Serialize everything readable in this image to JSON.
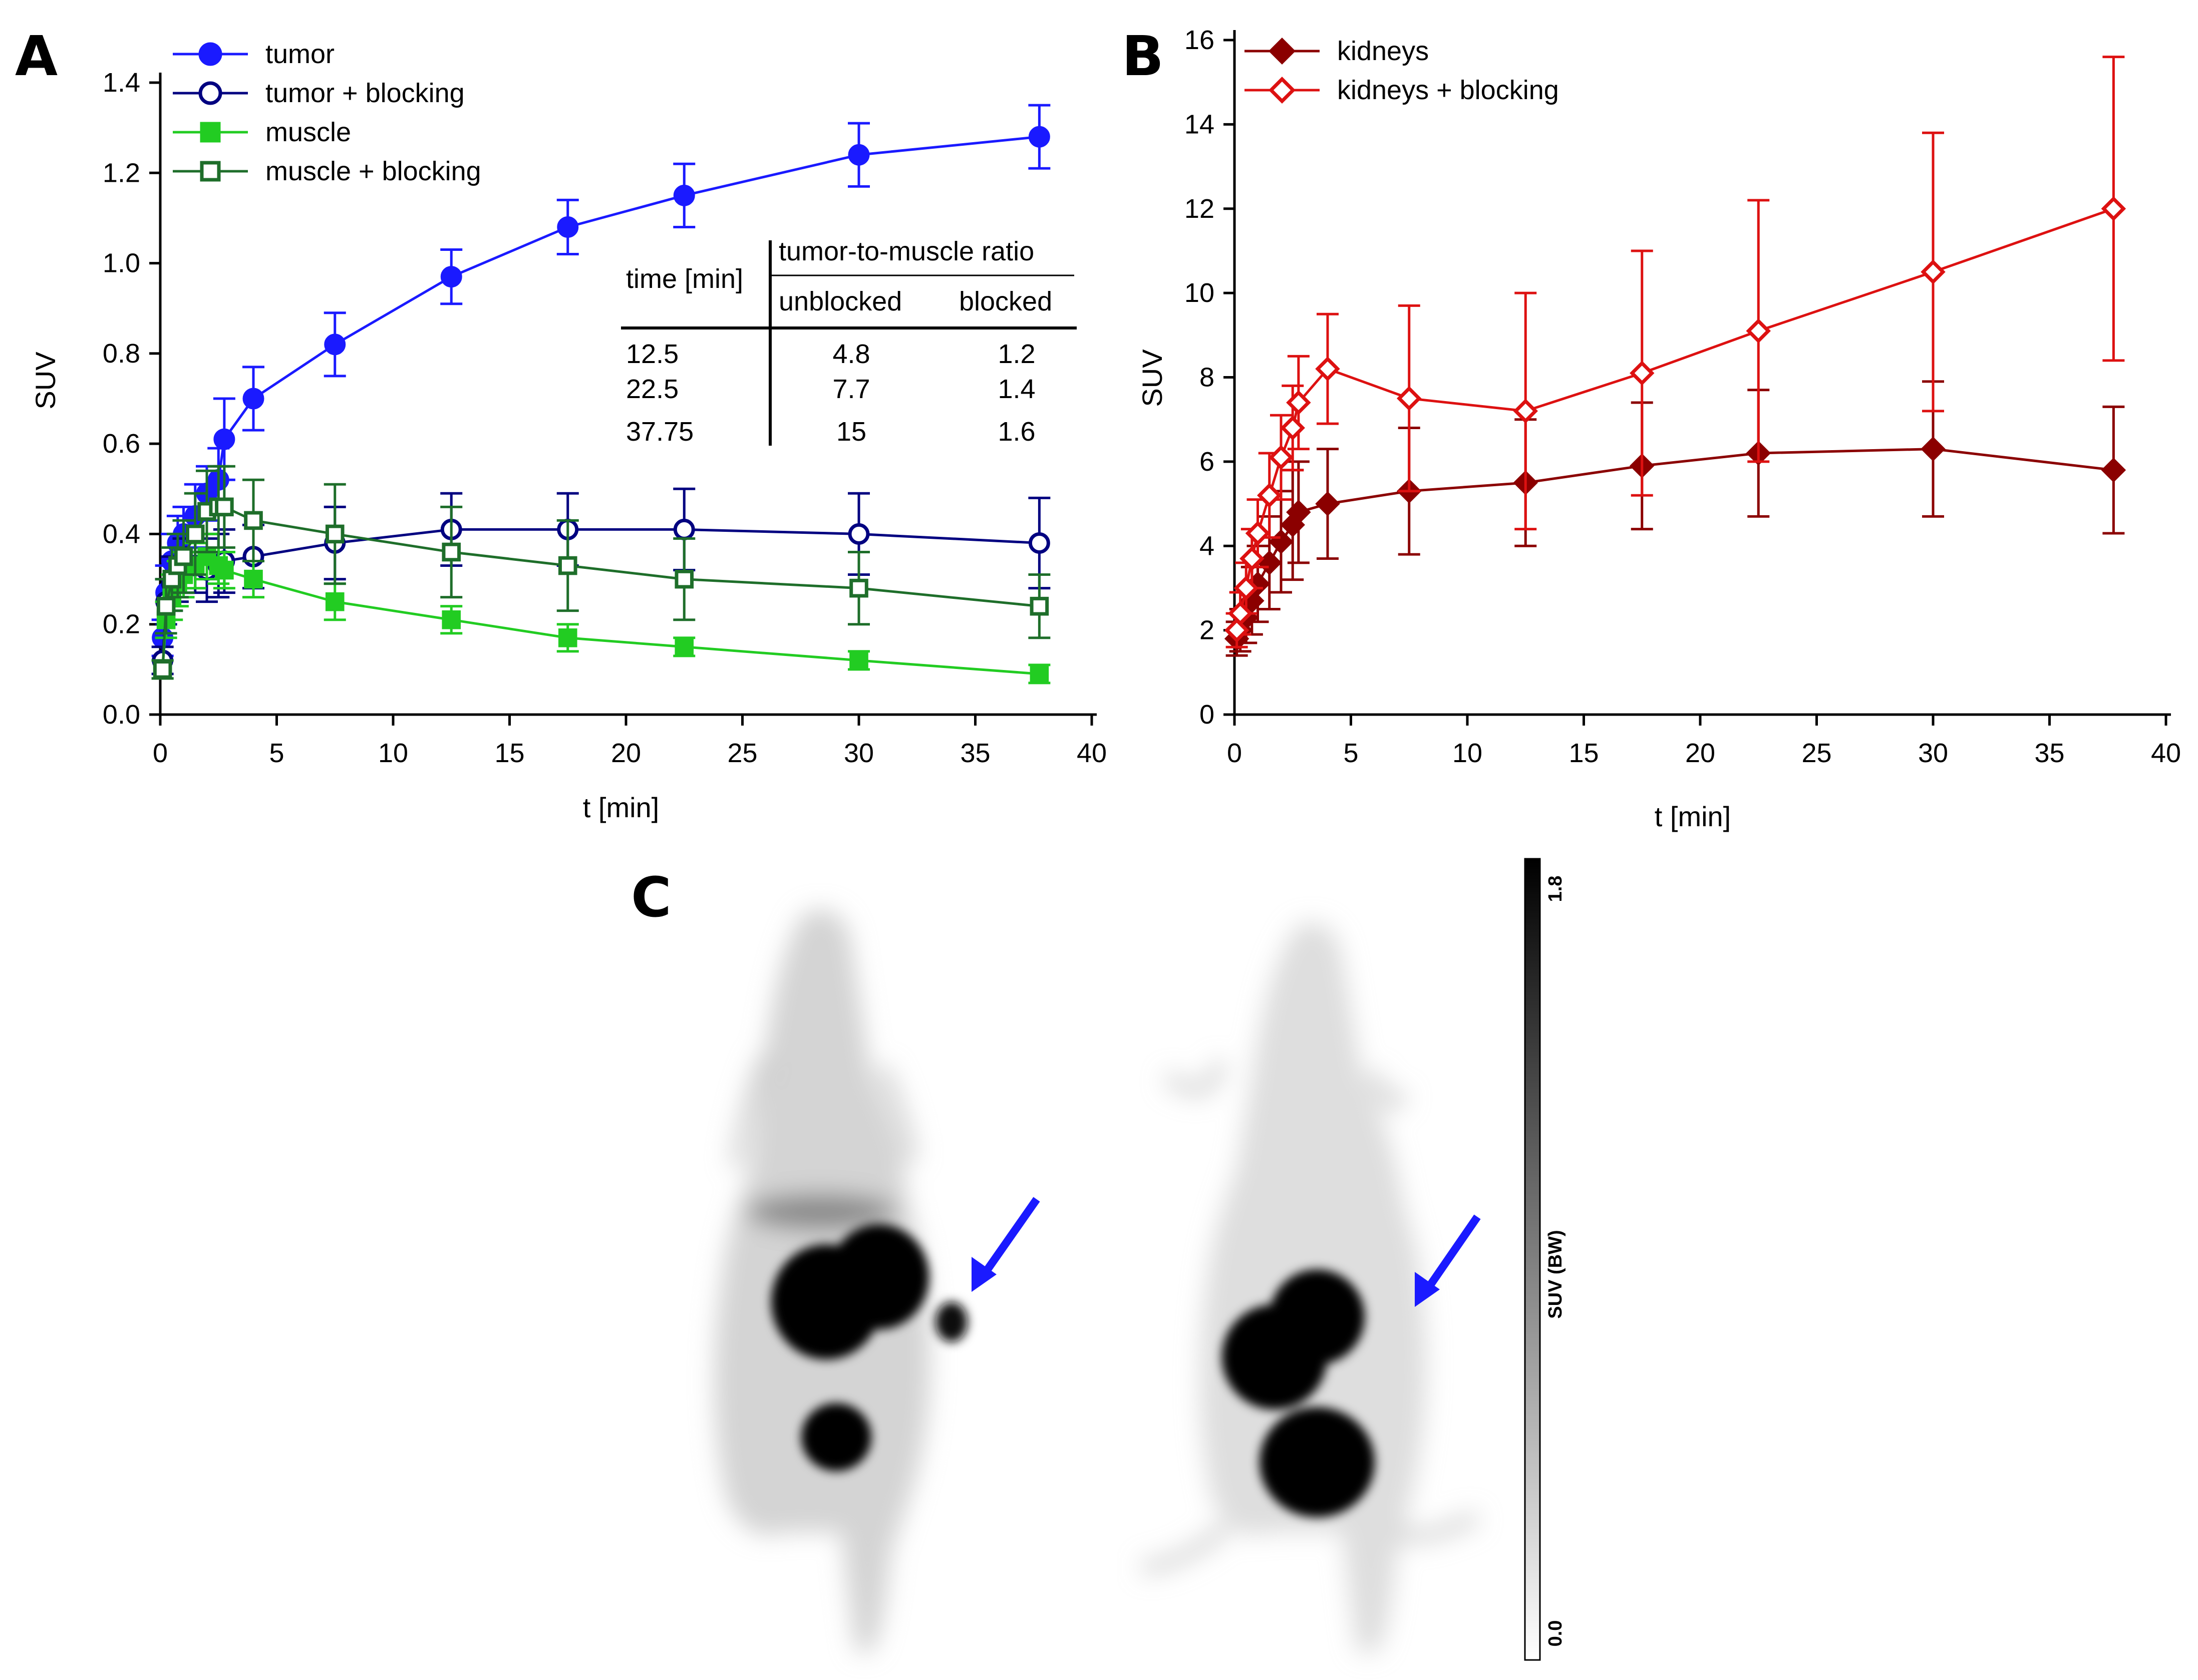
{
  "panels": {
    "a_letter": "A",
    "b_letter": "B",
    "c_letter": "C"
  },
  "chart_data": [
    {
      "type": "line",
      "panel": "A",
      "xlabel": "t [min]",
      "ylabel": "SUV",
      "xlim": [
        0,
        40
      ],
      "ylim": [
        0,
        1.4
      ],
      "xticks": [
        "0",
        "5",
        "10",
        "15",
        "20",
        "25",
        "30",
        "35",
        "40"
      ],
      "yticks": [
        "0.0",
        "0.2",
        "0.4",
        "0.6",
        "0.8",
        "1.0",
        "1.2",
        "1.4"
      ],
      "grid": false,
      "legend_position": "top-left",
      "series": [
        {
          "name": "tumor",
          "color": "#1a1aff",
          "marker": "circle-filled",
          "x": [
            0.1,
            0.25,
            0.5,
            0.75,
            1.0,
            1.5,
            2.0,
            2.5,
            2.75,
            4.0,
            7.5,
            12.5,
            17.5,
            22.5,
            30.0,
            37.75
          ],
          "y": [
            0.17,
            0.27,
            0.34,
            0.38,
            0.4,
            0.44,
            0.49,
            0.52,
            0.61,
            0.7,
            0.82,
            0.97,
            1.08,
            1.15,
            1.24,
            1.28
          ],
          "err": [
            0.04,
            0.06,
            0.06,
            0.06,
            0.06,
            0.07,
            0.06,
            0.07,
            0.09,
            0.07,
            0.07,
            0.06,
            0.06,
            0.07,
            0.07,
            0.07
          ]
        },
        {
          "name": "tumor + blocking",
          "color": "#000080",
          "marker": "circle-open",
          "x": [
            0.1,
            0.25,
            0.5,
            0.75,
            1.0,
            1.5,
            2.0,
            2.5,
            2.75,
            4.0,
            7.5,
            12.5,
            17.5,
            22.5,
            30.0,
            37.75
          ],
          "y": [
            0.12,
            0.25,
            0.29,
            0.31,
            0.33,
            0.33,
            0.32,
            0.33,
            0.34,
            0.35,
            0.38,
            0.41,
            0.41,
            0.41,
            0.4,
            0.38
          ],
          "err": [
            0.03,
            0.05,
            0.06,
            0.06,
            0.06,
            0.06,
            0.07,
            0.07,
            0.07,
            0.07,
            0.08,
            0.08,
            0.08,
            0.09,
            0.09,
            0.1
          ]
        },
        {
          "name": "muscle",
          "color": "#22cc22",
          "marker": "square-filled",
          "x": [
            0.1,
            0.25,
            0.5,
            0.75,
            1.0,
            1.5,
            2.0,
            2.5,
            2.75,
            4.0,
            7.5,
            12.5,
            17.5,
            22.5,
            30.0,
            37.75
          ],
          "y": [
            0.1,
            0.21,
            0.26,
            0.29,
            0.31,
            0.33,
            0.35,
            0.33,
            0.32,
            0.3,
            0.25,
            0.21,
            0.17,
            0.15,
            0.12,
            0.09
          ],
          "err": [
            0.02,
            0.04,
            0.05,
            0.05,
            0.05,
            0.05,
            0.05,
            0.04,
            0.04,
            0.04,
            0.04,
            0.03,
            0.03,
            0.02,
            0.02,
            0.02
          ]
        },
        {
          "name": "muscle + blocking",
          "color": "#1e6e2a",
          "marker": "square-open",
          "x": [
            0.1,
            0.25,
            0.5,
            0.75,
            1.0,
            1.5,
            2.0,
            2.5,
            2.75,
            4.0,
            7.5,
            12.5,
            17.5,
            22.5,
            30.0,
            37.75
          ],
          "y": [
            0.1,
            0.24,
            0.3,
            0.33,
            0.35,
            0.4,
            0.45,
            0.46,
            0.46,
            0.43,
            0.4,
            0.36,
            0.33,
            0.3,
            0.28,
            0.24
          ],
          "err": [
            0.02,
            0.06,
            0.07,
            0.07,
            0.08,
            0.09,
            0.09,
            0.09,
            0.09,
            0.09,
            0.11,
            0.1,
            0.1,
            0.09,
            0.08,
            0.07
          ]
        }
      ],
      "table": {
        "col_time": "time [min]",
        "col_group": "tumor-to-muscle ratio",
        "col_unblocked": "unblocked",
        "col_blocked": "blocked",
        "rows": [
          [
            "12.5",
            "4.8",
            "1.2"
          ],
          [
            "22.5",
            "7.7",
            "1.4"
          ],
          [
            "37.75",
            "15",
            "1.6"
          ]
        ]
      }
    },
    {
      "type": "line",
      "panel": "B",
      "xlabel": "t [min]",
      "ylabel": "SUV",
      "xlim": [
        0,
        40
      ],
      "ylim": [
        0,
        16
      ],
      "xticks": [
        "0",
        "5",
        "10",
        "15",
        "20",
        "25",
        "30",
        "35",
        "40"
      ],
      "yticks": [
        "0",
        "2",
        "4",
        "6",
        "8",
        "10",
        "12",
        "14",
        "16"
      ],
      "grid": false,
      "legend_position": "top-left",
      "series": [
        {
          "name": "kidneys",
          "color": "#8b0000",
          "marker": "diamond-filled",
          "x": [
            0.1,
            0.25,
            0.5,
            0.75,
            1.0,
            1.5,
            2.0,
            2.5,
            2.75,
            4.0,
            7.5,
            12.5,
            17.5,
            22.5,
            30.0,
            37.75
          ],
          "y": [
            1.8,
            2.0,
            2.3,
            2.7,
            3.1,
            3.6,
            4.1,
            4.5,
            4.8,
            5.0,
            5.3,
            5.5,
            5.9,
            6.2,
            6.3,
            5.8
          ],
          "err": [
            0.4,
            0.5,
            0.6,
            0.8,
            0.9,
            1.1,
            1.2,
            1.3,
            1.2,
            1.3,
            1.5,
            1.5,
            1.5,
            1.5,
            1.6,
            1.5
          ]
        },
        {
          "name": "kidneys + blocking",
          "color": "#dd1111",
          "marker": "diamond-open",
          "x": [
            0.1,
            0.25,
            0.5,
            0.75,
            1.0,
            1.5,
            2.0,
            2.5,
            2.75,
            4.0,
            7.5,
            12.5,
            17.5,
            22.5,
            30.0,
            37.75
          ],
          "y": [
            2.0,
            2.4,
            3.0,
            3.7,
            4.3,
            5.2,
            6.1,
            6.8,
            7.4,
            8.2,
            7.5,
            7.2,
            8.1,
            9.1,
            10.5,
            12.0
          ],
          "err": [
            0.4,
            0.5,
            0.6,
            0.7,
            0.8,
            1.0,
            1.0,
            1.0,
            1.1,
            1.3,
            2.2,
            2.8,
            2.9,
            3.1,
            3.3,
            3.6
          ]
        }
      ]
    }
  ],
  "colorbar": {
    "label": "SUV (BW)",
    "max_label": "1.8",
    "min_label": "0.0"
  },
  "arrow_color": "#1a1aff"
}
